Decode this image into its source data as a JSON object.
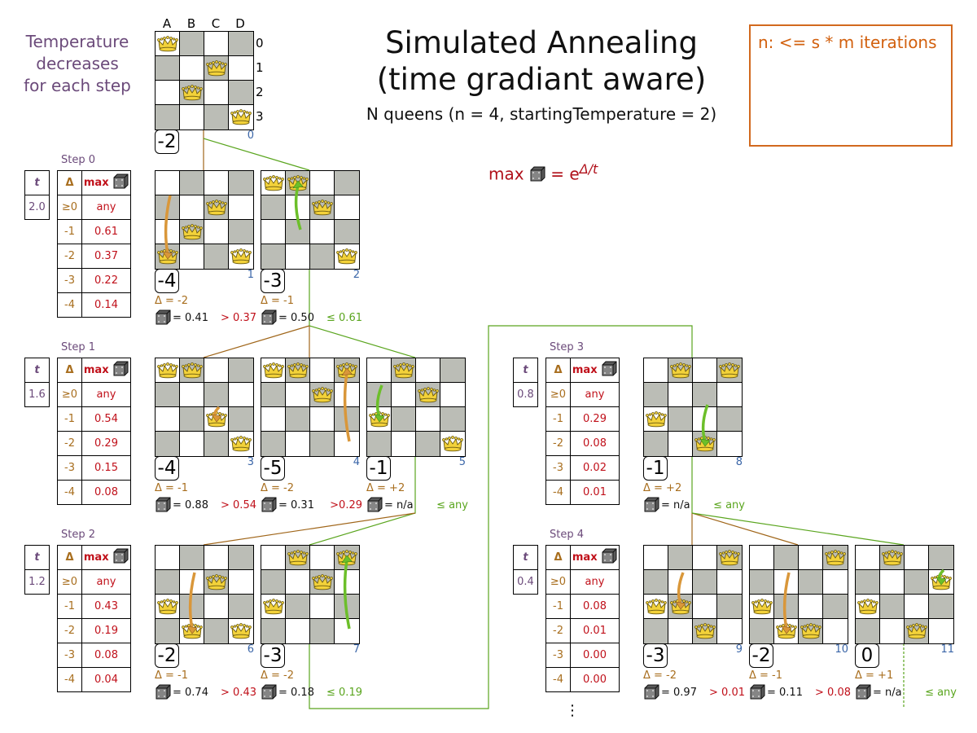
{
  "title_line1": "Simulated Annealing",
  "title_line2": "(time gradiant aware)",
  "subtitle": "N queens (n = 4, startingTemperature = 2)",
  "note": "n: <= s * m iterations",
  "side_text": [
    "Temperature",
    "decreases",
    "for each step"
  ],
  "formula": {
    "prefix": "max",
    "icon": "dice-icon",
    "eq": "= e",
    "exponent": "Δ/t"
  },
  "columns": [
    "A",
    "B",
    "C",
    "D"
  ],
  "rows": [
    "0",
    "1",
    "2",
    "3"
  ],
  "colors": {
    "accepted": "#5aa51e",
    "rejected": "#c0101a",
    "delta": "#a86e1e",
    "temperature": "#6b4a7a",
    "index": "#3b66a8",
    "dark_square": "#bbbdb6",
    "note_border": "#d2691e"
  },
  "table_headers": {
    "t": "t",
    "delta": "Δ",
    "max": "max"
  },
  "steps": [
    {
      "label": "Step 0",
      "t": "2.0",
      "rows": [
        [
          "≥0",
          "any"
        ],
        [
          "-1",
          "0.61"
        ],
        [
          "-2",
          "0.37"
        ],
        [
          "-3",
          "0.22"
        ],
        [
          "-4",
          "0.14"
        ]
      ]
    },
    {
      "label": "Step 1",
      "t": "1.6",
      "rows": [
        [
          "≥0",
          "any"
        ],
        [
          "-1",
          "0.54"
        ],
        [
          "-2",
          "0.29"
        ],
        [
          "-3",
          "0.15"
        ],
        [
          "-4",
          "0.08"
        ]
      ]
    },
    {
      "label": "Step 2",
      "t": "1.2",
      "rows": [
        [
          "≥0",
          "any"
        ],
        [
          "-1",
          "0.43"
        ],
        [
          "-2",
          "0.19"
        ],
        [
          "-3",
          "0.08"
        ],
        [
          "-4",
          "0.04"
        ]
      ]
    },
    {
      "label": "Step 3",
      "t": "0.8",
      "rows": [
        [
          "≥0",
          "any"
        ],
        [
          "-1",
          "0.29"
        ],
        [
          "-2",
          "0.08"
        ],
        [
          "-3",
          "0.02"
        ],
        [
          "-4",
          "0.01"
        ]
      ]
    },
    {
      "label": "Step 4",
      "t": "0.4",
      "rows": [
        [
          "≥0",
          "any"
        ],
        [
          "-1",
          "0.08"
        ],
        [
          "-2",
          "0.01"
        ],
        [
          "-3",
          "0.00"
        ],
        [
          "-4",
          "0.00"
        ]
      ]
    }
  ],
  "boards": [
    {
      "index": "0",
      "queens": [
        0,
        2,
        1,
        3
      ],
      "score": "-2"
    },
    {
      "index": "1",
      "queens": [
        3,
        2,
        1,
        3
      ],
      "score": "-4",
      "delta": "Δ = -2",
      "dice": "= 0.41",
      "compare": "> 0.37",
      "accepted": false,
      "move": {
        "col": 0,
        "from": 0.6,
        "to": 3
      }
    },
    {
      "index": "2",
      "queens": [
        0,
        0,
        1,
        3
      ],
      "score": "-3",
      "delta": "Δ = -1",
      "dice": "= 0.50",
      "compare": "≤ 0.61",
      "accepted": true,
      "move": {
        "col": 1,
        "from": 2,
        "to": 0
      }
    },
    {
      "index": "3",
      "queens": [
        0,
        0,
        2,
        3
      ],
      "score": "-4",
      "delta": "Δ = -1",
      "dice": "= 0.88",
      "compare": "> 0.54",
      "accepted": false,
      "move": {
        "col": 2,
        "from": 1.6,
        "to": 2
      }
    },
    {
      "index": "4",
      "queens": [
        0,
        0,
        1,
        0
      ],
      "score": "-5",
      "delta": "Δ = -2",
      "dice": "= 0.31",
      "compare": ">0.29",
      "accepted": false,
      "move": {
        "col": 3,
        "from": 3,
        "to": 0
      }
    },
    {
      "index": "5",
      "queens": [
        2,
        0,
        1,
        3
      ],
      "score": "-1",
      "delta": "Δ = +2",
      "dice": "= n/a",
      "compare": "≤ any",
      "accepted": true,
      "move": {
        "col": 0,
        "from": 0.7,
        "to": 2
      }
    },
    {
      "index": "6",
      "queens": [
        2,
        3,
        1,
        3
      ],
      "score": "-2",
      "delta": "Δ = -1",
      "dice": "= 0.74",
      "compare": "> 0.43",
      "accepted": false,
      "move": {
        "col": 1,
        "from": 0.7,
        "to": 3
      }
    },
    {
      "index": "7",
      "queens": [
        2,
        0,
        1,
        0
      ],
      "score": "-3",
      "delta": "Δ = -2",
      "dice": "= 0.18",
      "compare": "≤ 0.19",
      "accepted": true,
      "move": {
        "col": 3,
        "from": 3,
        "to": 0
      }
    },
    {
      "index": "8",
      "queens": [
        2,
        0,
        3,
        0
      ],
      "score": "-1",
      "delta": "Δ = +2",
      "dice": "= n/a",
      "compare": "≤ any",
      "accepted": true,
      "move": {
        "col": 2,
        "from": 1.5,
        "to": 3
      }
    },
    {
      "index": "9",
      "queens": [
        2,
        2,
        3,
        0
      ],
      "score": "-3",
      "delta": "Δ = -2",
      "dice": "= 0.97",
      "compare": "> 0.01",
      "accepted": false,
      "move": {
        "col": 1,
        "from": 0.7,
        "to": 2
      }
    },
    {
      "index": "10",
      "queens": [
        2,
        3,
        3,
        0
      ],
      "score": "-2",
      "delta": "Δ = -1",
      "dice": "= 0.11",
      "compare": "> 0.08",
      "accepted": false,
      "move": {
        "col": 1,
        "from": 0.7,
        "to": 3
      }
    },
    {
      "index": "11",
      "queens": [
        2,
        0,
        3,
        1
      ],
      "score": "0",
      "delta": "Δ = +1",
      "dice": "= n/a",
      "compare": "≤ any",
      "accepted": true,
      "move": {
        "col": 3,
        "from": 0.6,
        "to": 1
      }
    }
  ],
  "continuation": "⋮"
}
